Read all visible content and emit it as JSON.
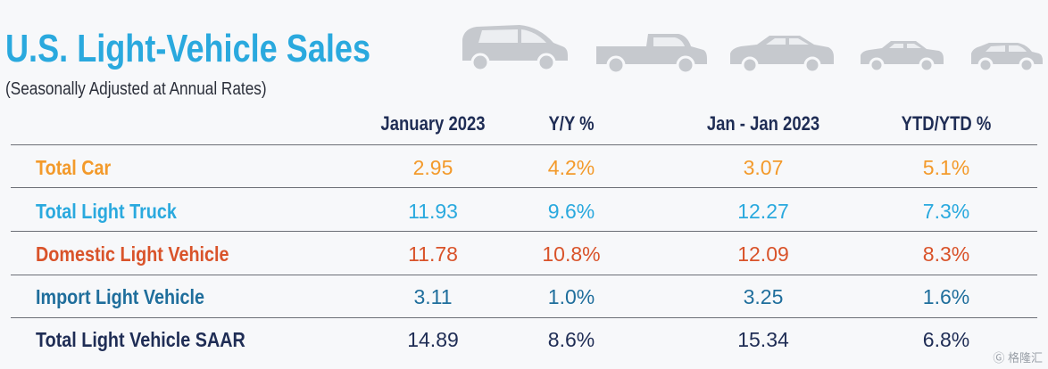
{
  "title": "U.S. Light-Vehicle Sales",
  "subtitle": "(Seasonally Adjusted at Annual Rates)",
  "headers": [
    "January 2023",
    "Y/Y %",
    "Jan - Jan 2023",
    "YTD/YTD %"
  ],
  "rows": [
    {
      "label": "Total Car",
      "values": [
        "2.95",
        "4.2%",
        "3.07",
        "5.1%"
      ],
      "color": "#f39a2b"
    },
    {
      "label": "Total Light Truck",
      "values": [
        "11.93",
        "9.6%",
        "12.27",
        "7.3%"
      ],
      "color": "#2aa9de"
    },
    {
      "label": "Domestic Light Vehicle",
      "values": [
        "11.78",
        "10.8%",
        "12.09",
        "8.3%"
      ],
      "color": "#d9532a"
    },
    {
      "label": "Import Light Vehicle",
      "values": [
        "3.11",
        "1.0%",
        "3.25",
        "1.6%"
      ],
      "color": "#1f6e9c"
    },
    {
      "label": "Total Light Vehicle SAAR",
      "values": [
        "14.89",
        "8.6%",
        "15.34",
        "6.8%"
      ],
      "color": "#1f2d55"
    }
  ],
  "header_color": "#1f2d55",
  "icons": [
    "minivan-icon",
    "pickup-truck-icon",
    "sedan-icon",
    "compact-car-icon",
    "hatchback-icon"
  ],
  "watermark": "格隆汇"
}
